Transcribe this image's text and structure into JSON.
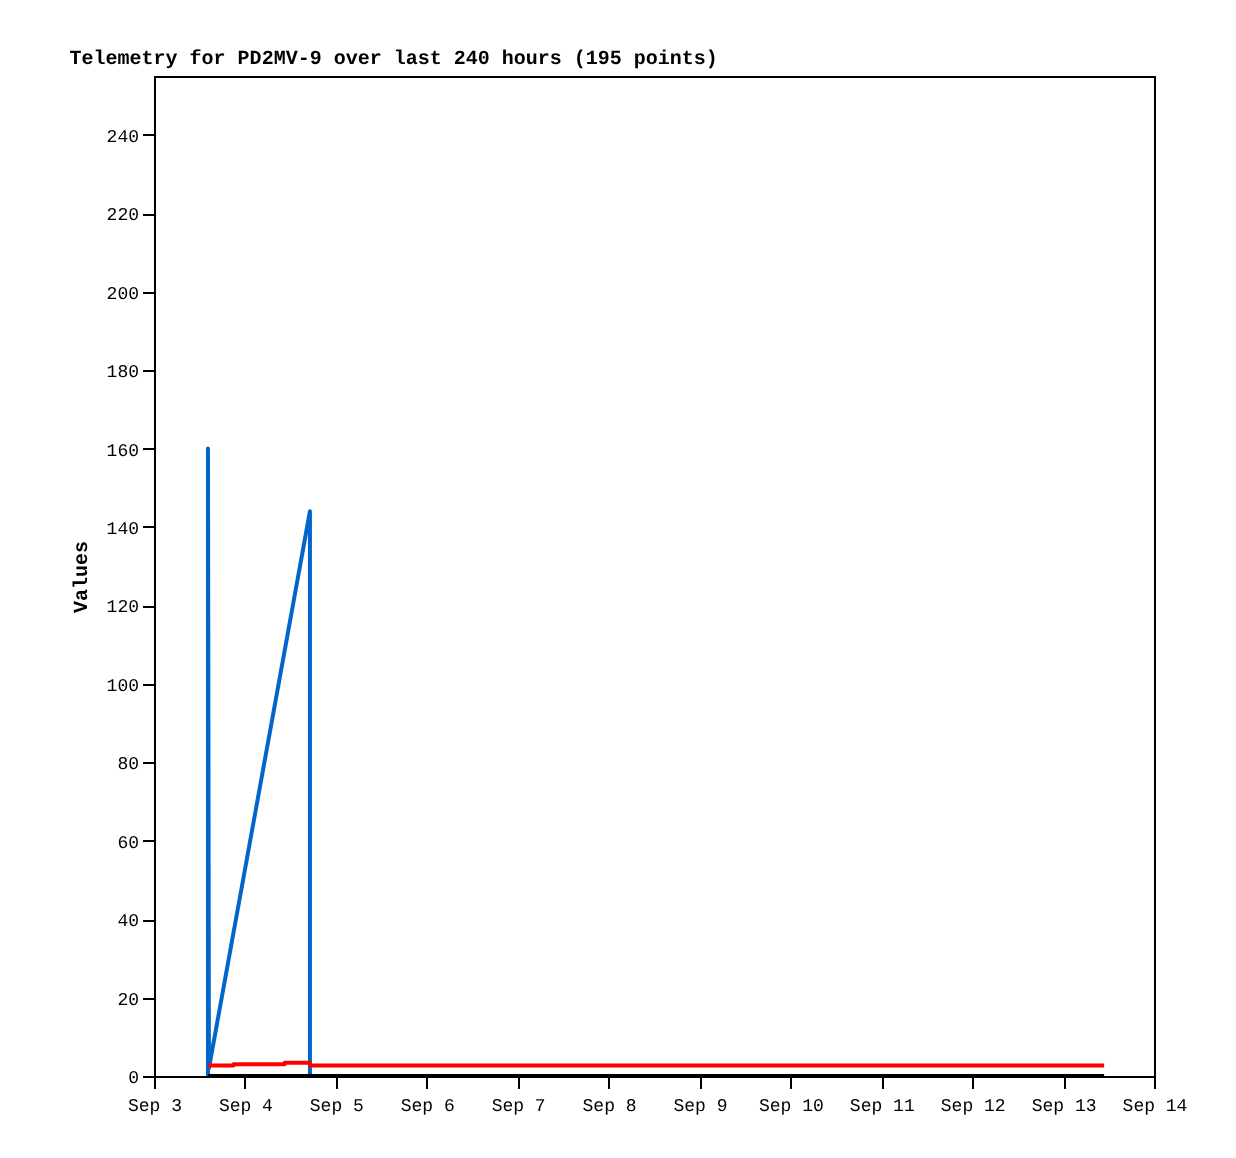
{
  "chart_data": {
    "type": "line",
    "title": "Telemetry for PD2MV-9 over last 240 hours (195 points)",
    "ylabel": "Values",
    "ylim": [
      0,
      255
    ],
    "yticks": [
      0,
      20,
      40,
      60,
      80,
      100,
      120,
      140,
      160,
      180,
      200,
      220,
      240
    ],
    "xlim": [
      "--09-03T00:00",
      "--09-14T00:00"
    ],
    "xticks": [
      {
        "value": "--09-03",
        "label": "Sep 3"
      },
      {
        "value": "--09-04",
        "label": "Sep 4"
      },
      {
        "value": "--09-05",
        "label": "Sep 5"
      },
      {
        "value": "--09-06",
        "label": "Sep 6"
      },
      {
        "value": "--09-07",
        "label": "Sep 7"
      },
      {
        "value": "--09-08",
        "label": "Sep 8"
      },
      {
        "value": "--09-09",
        "label": "Sep 9"
      },
      {
        "value": "--09-10",
        "label": "Sep 10"
      },
      {
        "value": "--09-11",
        "label": "Sep 11"
      },
      {
        "value": "--09-12",
        "label": "Sep 12"
      },
      {
        "value": "--09-13",
        "label": "Sep 13"
      },
      {
        "value": "--09-14",
        "label": "Sep 14"
      }
    ],
    "grid": false,
    "marker": "none",
    "line_style": "solid",
    "series": [
      {
        "color": "#0066cc",
        "x": [
          "--09-03T14:15",
          "--09-03T14:15",
          "--09-03T14:30",
          "--09-04T17:10",
          "--09-04T17:10"
        ],
        "values": [
          0,
          160,
          2,
          144,
          0
        ]
      },
      {
        "color": "#ff0000",
        "x": [
          "--09-03T14:15",
          "--09-03T21:00",
          "--09-03T21:00",
          "--09-04T10:30",
          "--09-04T10:30",
          "--09-04T17:10",
          "--09-04T17:10",
          "--09-13T10:50"
        ],
        "values": [
          2.7,
          2.7,
          3.0,
          3.0,
          3.4,
          3.4,
          2.7,
          2.7
        ]
      },
      {
        "color": "#000000",
        "x": [
          "--09-03T14:15",
          "--09-13T10:50"
        ],
        "values": [
          0,
          0
        ]
      }
    ]
  }
}
